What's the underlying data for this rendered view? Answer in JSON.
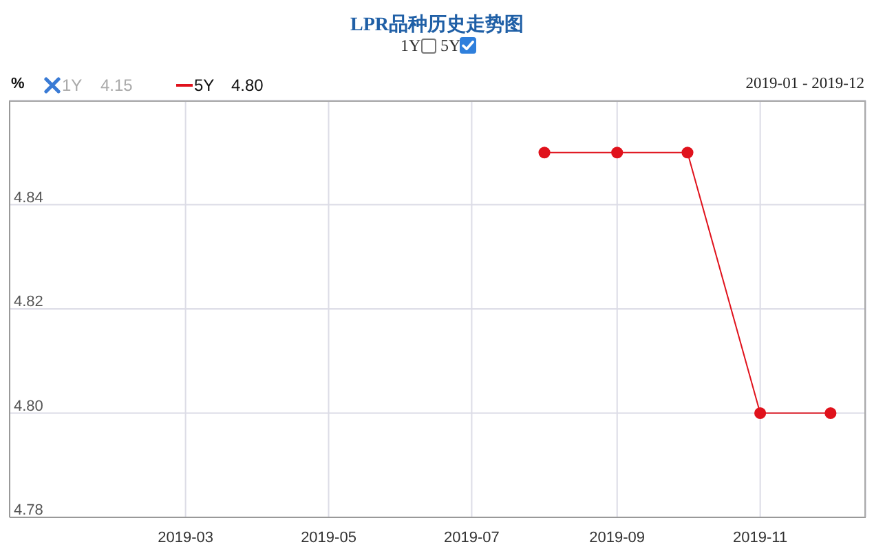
{
  "chart_data": {
    "type": "line",
    "title": "LPR品种历史走势图",
    "ylabel": "%",
    "x": [
      "2019-08",
      "2019-09",
      "2019-10",
      "2019-11",
      "2019-12"
    ],
    "series": [
      {
        "name": "5Y",
        "color": "#e0121c",
        "values": [
          4.85,
          4.85,
          4.85,
          4.8,
          4.8
        ]
      }
    ],
    "xlim": [
      "2018-12-16",
      "2019-12-16"
    ],
    "xticks": [
      "2019-03",
      "2019-05",
      "2019-07",
      "2019-09",
      "2019-11"
    ],
    "ylim": [
      4.78,
      4.86
    ],
    "yticks": [
      4.78,
      {
        "value": 4.8,
        "label": "4.80"
      },
      4.82,
      4.84
    ],
    "grid": true,
    "legend": "top left",
    "marker": "circle",
    "annotations": [
      "1Y",
      "4.15",
      "4.80",
      "2019-01 - 2019-12",
      "1Y",
      "5Y"
    ]
  }
}
